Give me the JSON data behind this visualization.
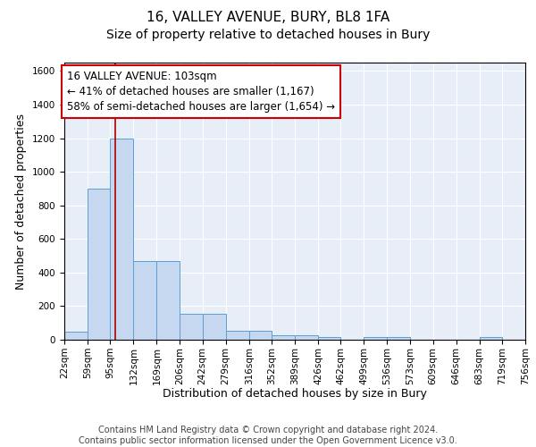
{
  "title": "16, VALLEY AVENUE, BURY, BL8 1FA",
  "subtitle": "Size of property relative to detached houses in Bury",
  "xlabel": "Distribution of detached houses by size in Bury",
  "ylabel": "Number of detached properties",
  "bin_edges": [
    22,
    59,
    95,
    132,
    169,
    206,
    242,
    279,
    316,
    352,
    389,
    426,
    462,
    499,
    536,
    573,
    609,
    646,
    683,
    719,
    756
  ],
  "bar_heights": [
    50,
    900,
    1200,
    470,
    470,
    155,
    155,
    55,
    55,
    25,
    25,
    18,
    0,
    18,
    18,
    0,
    0,
    0,
    18,
    0
  ],
  "bar_color": "#c5d8ef",
  "bar_edge_color": "#5a9fd4",
  "red_line_x": 103,
  "red_line_color": "#aa0000",
  "ylim": [
    0,
    1650
  ],
  "yticks": [
    0,
    200,
    400,
    600,
    800,
    1000,
    1200,
    1400,
    1600
  ],
  "annotation_line1": "16 VALLEY AVENUE: 103sqm",
  "annotation_line2": "← 41% of detached houses are smaller (1,167)",
  "annotation_line3": "58% of semi-detached houses are larger (1,654) →",
  "bg_color": "#e8eef8",
  "grid_color": "#ffffff",
  "footer_text": "Contains HM Land Registry data © Crown copyright and database right 2024.\nContains public sector information licensed under the Open Government Licence v3.0.",
  "title_fontsize": 11,
  "subtitle_fontsize": 10,
  "xlabel_fontsize": 9,
  "ylabel_fontsize": 9,
  "tick_fontsize": 7.5,
  "annotation_fontsize": 8.5,
  "footer_fontsize": 7
}
